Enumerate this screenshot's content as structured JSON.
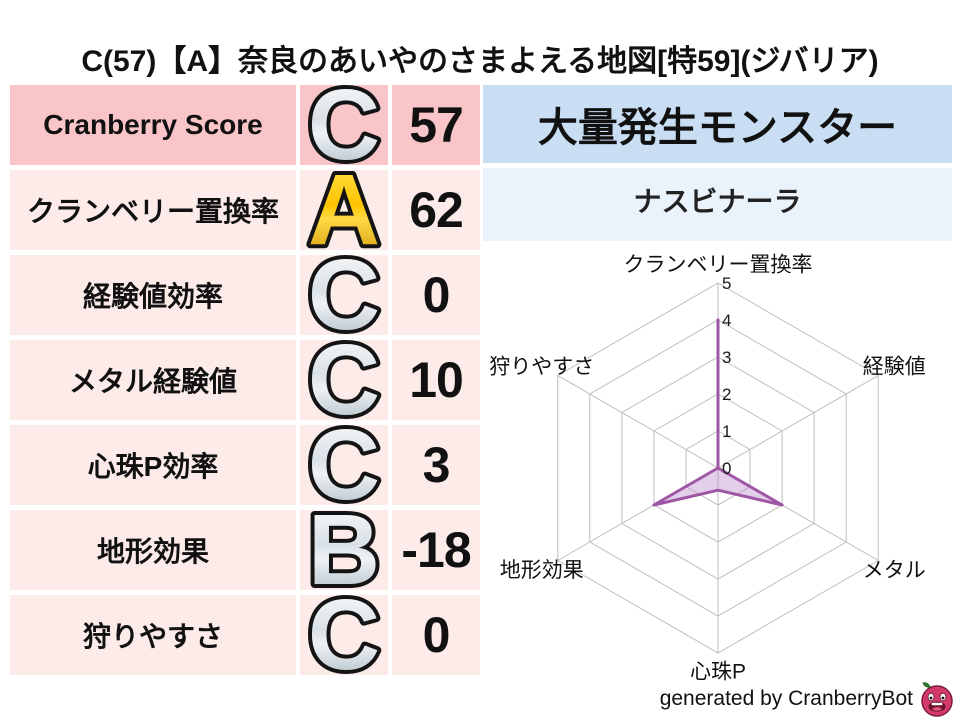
{
  "title": "C(57)【A】奈良のあいやのさまよえる地図[特59](ジバリア)",
  "colors": {
    "row_highlight": "#f9c5c9",
    "row_normal": "#fcebe9",
    "monster_header_bg": "#c9ddf3",
    "monster_name_bg": "#eaf2fb",
    "grid": "#bdbdbd",
    "radar_stroke": "#9e57a5",
    "radar_fill": "#b980c9",
    "grade_silver": [
      "#ffffff",
      "#d9e1e7",
      "#eef2f5",
      "#9fb0ba"
    ],
    "grade_gold": [
      "#ffe95e",
      "#ffc400",
      "#ffda45",
      "#cd8e00"
    ],
    "berry_body": "#d33a69",
    "berry_outline": "#7e1d3e",
    "berry_leaf": "#2e7d32"
  },
  "stats": {
    "rows": [
      {
        "label": "Cranberry Score",
        "grade": "C",
        "grade_style": "silver",
        "value": "57",
        "highlight": true
      },
      {
        "label": "クランベリー置換率",
        "grade": "A",
        "grade_style": "gold",
        "value": "62",
        "highlight": false
      },
      {
        "label": "経験値効率",
        "grade": "C",
        "grade_style": "silver",
        "value": "0",
        "highlight": false
      },
      {
        "label": "メタル経験値",
        "grade": "C",
        "grade_style": "silver",
        "value": "10",
        "highlight": false
      },
      {
        "label": "心珠P効率",
        "grade": "C",
        "grade_style": "silver",
        "value": "3",
        "highlight": false
      },
      {
        "label": "地形効果",
        "grade": "B",
        "grade_style": "silver",
        "value": "-18",
        "highlight": false
      },
      {
        "label": "狩りやすさ",
        "grade": "C",
        "grade_style": "silver",
        "value": "0",
        "highlight": false
      }
    ]
  },
  "monster": {
    "header": "大量発生モンスター",
    "name": "ナスビナーラ"
  },
  "chart_data": {
    "type": "radar",
    "grid": "hexagon",
    "axes_clockwise_from_top": [
      "クランベリー置換率",
      "経験値",
      "メタル",
      "心珠P",
      "地形効果",
      "狩りやすさ"
    ],
    "values": [
      4,
      0,
      2,
      0.6,
      2,
      0
    ],
    "ticks": [
      0,
      1,
      2,
      3,
      4,
      5
    ],
    "rmax": 5,
    "legend": "none"
  },
  "footer": {
    "credit": "generated by CranberryBot",
    "logo": "cranberry-slime-icon"
  }
}
